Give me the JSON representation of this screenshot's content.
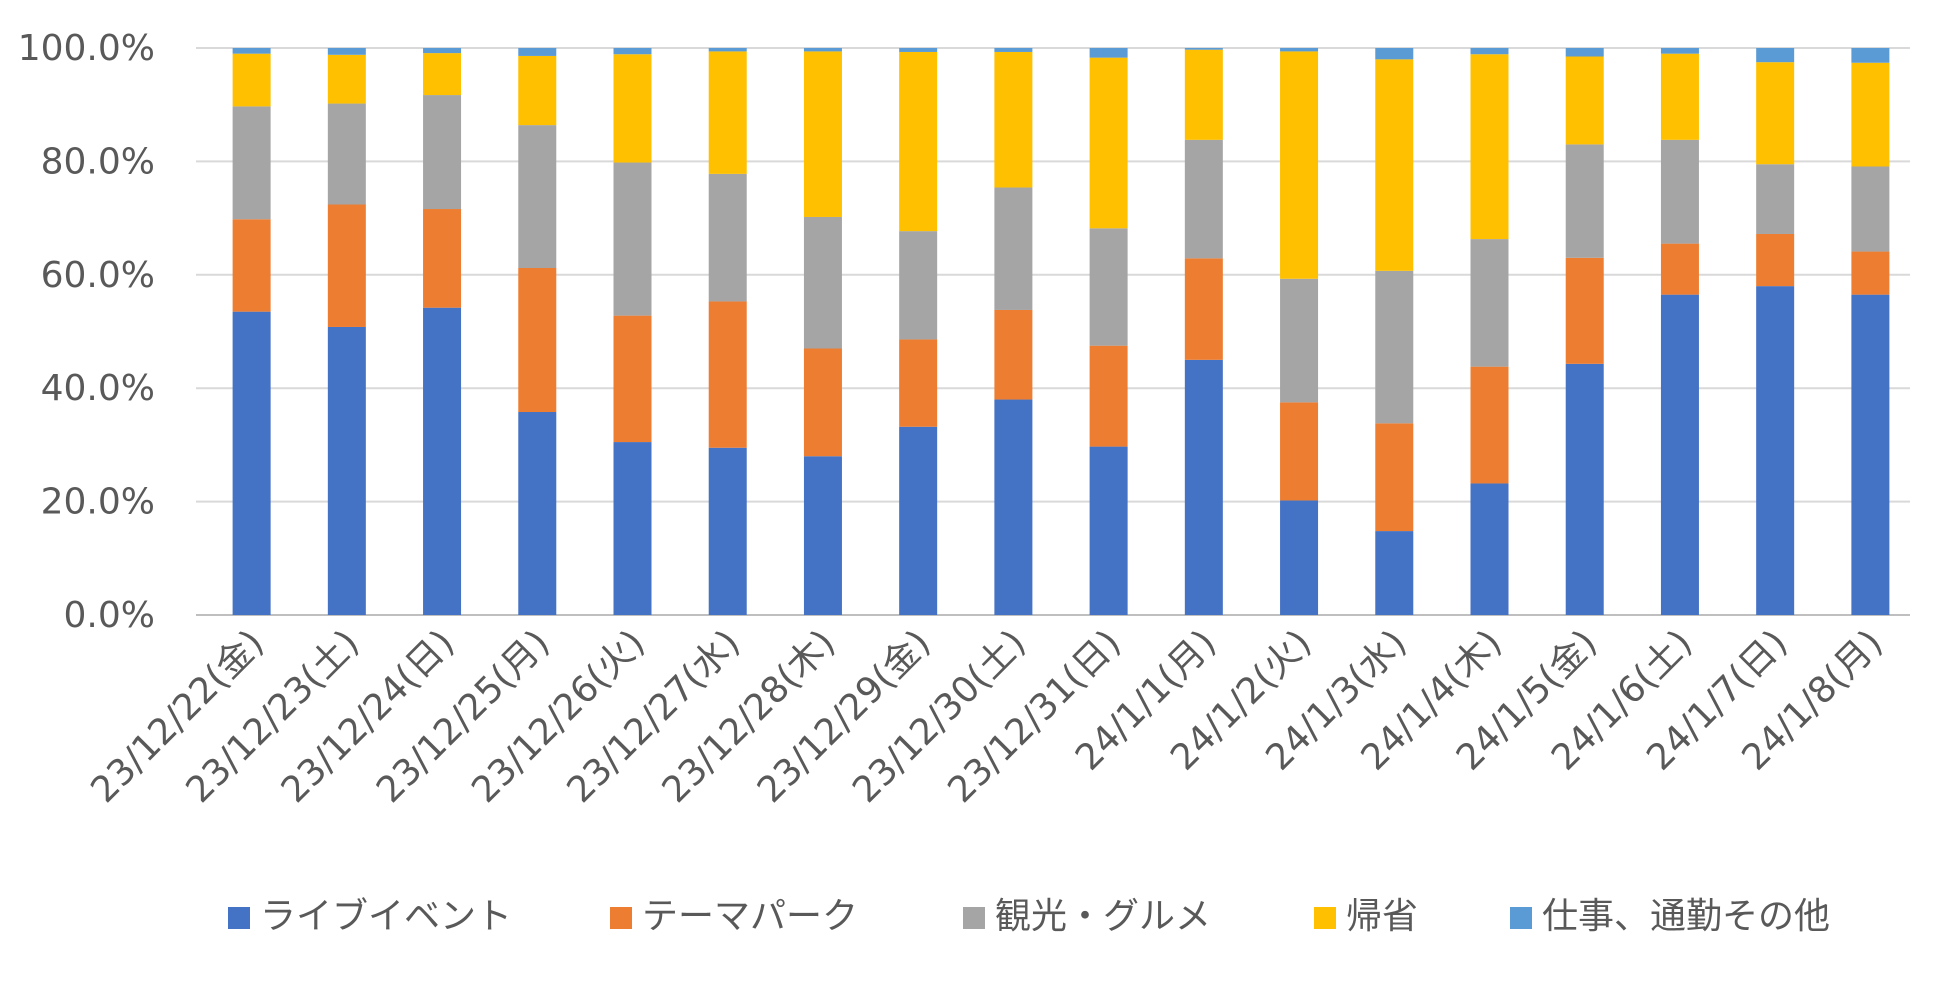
{
  "chart_data": {
    "type": "bar",
    "stacked": true,
    "percent": true,
    "title": "",
    "xlabel": "",
    "ylabel": "",
    "ylim": [
      0,
      100
    ],
    "y_ticks": [
      "0.0%",
      "20.0%",
      "40.0%",
      "60.0%",
      "80.0%",
      "100.0%"
    ],
    "grid": true,
    "legend_position": "bottom",
    "categories": [
      "23/12/22(金)",
      "23/12/23(土)",
      "23/12/24(日)",
      "23/12/25(月)",
      "23/12/26(火)",
      "23/12/27(水)",
      "23/12/28(木)",
      "23/12/29(金)",
      "23/12/30(土)",
      "23/12/31(日)",
      "24/1/1(月)",
      "24/1/2(火)",
      "24/1/3(水)",
      "24/1/4(木)",
      "24/1/5(金)",
      "24/1/6(土)",
      "24/1/7(日)",
      "24/1/8(月)"
    ],
    "series": [
      {
        "name": "ライブイベント",
        "color": "#4472C4",
        "values": [
          53.5,
          50.8,
          54.2,
          35.8,
          30.5,
          29.5,
          28.0,
          33.2,
          38.0,
          29.7,
          45.0,
          20.2,
          14.8,
          23.2,
          44.3,
          56.5,
          58.0,
          56.5
        ]
      },
      {
        "name": "テーマパーク",
        "color": "#ED7D31",
        "values": [
          16.3,
          21.6,
          17.4,
          25.4,
          22.3,
          25.8,
          19.0,
          15.4,
          15.8,
          17.8,
          17.9,
          17.3,
          19.0,
          20.6,
          18.7,
          9.0,
          9.2,
          7.6
        ]
      },
      {
        "name": "観光・グルメ",
        "color": "#A5A5A5",
        "values": [
          19.9,
          17.8,
          20.1,
          25.2,
          27.0,
          22.5,
          23.2,
          19.1,
          21.6,
          20.7,
          20.9,
          21.8,
          26.9,
          22.5,
          20.0,
          18.3,
          12.3,
          15.0
        ]
      },
      {
        "name": "帰省",
        "color": "#FFC000",
        "values": [
          9.3,
          8.6,
          7.4,
          12.2,
          19.1,
          21.6,
          29.2,
          31.6,
          23.9,
          30.1,
          15.9,
          40.1,
          37.3,
          32.6,
          15.5,
          15.2,
          18.0,
          18.3
        ]
      },
      {
        "name": "仕事、通勤その他",
        "color": "#5B9BD5",
        "values": [
          1.0,
          1.2,
          0.9,
          1.4,
          1.1,
          0.6,
          0.6,
          0.7,
          0.7,
          1.7,
          0.3,
          0.6,
          2.0,
          1.1,
          1.5,
          1.0,
          2.5,
          2.6
        ]
      }
    ]
  }
}
